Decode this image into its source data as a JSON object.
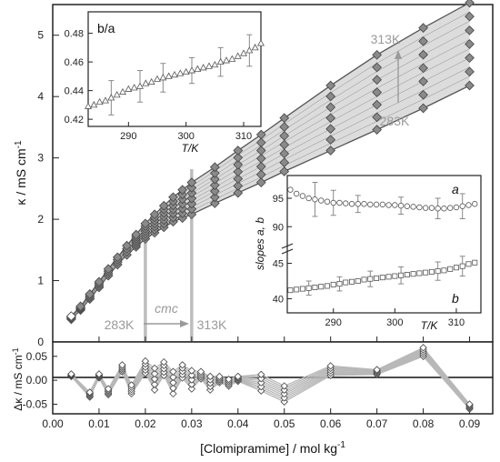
{
  "figure": {
    "xlabel": "[Clomipramime] / mol kg",
    "xlabel_sup": "-1",
    "main_ylabel": "κ / mS cm",
    "main_ylabel_sup": "-1",
    "resid_ylabel": "Δκ / mS cm",
    "resid_ylabel_sup": "-1",
    "annot_cmc": "cmc",
    "annot_283_bottom": "283K",
    "annot_313_bottom": "313K",
    "annot_313_top": "313K",
    "annot_283_top": "283K"
  },
  "colors": {
    "marker_fill": "#8a8a8a",
    "marker_open": "#ffffff",
    "line": "#555555",
    "band": "#bdbdbd",
    "annotation": "#9a9a9a"
  },
  "chart_data": [
    {
      "type": "line",
      "id": "main",
      "title": "",
      "xlabel": "[Clomipramime] / mol kg-1",
      "ylabel": "κ / mS cm-1",
      "xlim": [
        0.0,
        0.095
      ],
      "ylim": [
        0.0,
        5.5
      ],
      "xticks": [
        "0.00",
        "0.01",
        "0.02",
        "0.03",
        "0.04",
        "0.05",
        "0.06",
        "0.07",
        "0.08",
        "0.09"
      ],
      "yticks": [
        "0",
        "1",
        "2",
        "3",
        "4",
        "5"
      ],
      "series": [
        {
          "temperature": "283K",
          "x": [
            0.004,
            0.006,
            0.008,
            0.01,
            0.012,
            0.014,
            0.016,
            0.018,
            0.02,
            0.022,
            0.024,
            0.026,
            0.028,
            0.03,
            0.035,
            0.04,
            0.045,
            0.05,
            0.06,
            0.07,
            0.08,
            0.09
          ],
          "y": [
            0.37,
            0.52,
            0.7,
            0.89,
            1.08,
            1.26,
            1.42,
            1.55,
            1.68,
            1.78,
            1.87,
            1.96,
            2.02,
            2.08,
            2.26,
            2.43,
            2.6,
            2.78,
            3.12,
            3.46,
            3.81,
            4.18
          ]
        },
        {
          "temperature": "313K",
          "x": [
            0.004,
            0.006,
            0.008,
            0.01,
            0.012,
            0.014,
            0.016,
            0.018,
            0.02,
            0.022,
            0.024,
            0.026,
            0.028,
            0.03,
            0.035,
            0.04,
            0.045,
            0.05,
            0.06,
            0.07,
            0.08,
            0.09
          ],
          "y": [
            0.42,
            0.58,
            0.78,
            0.98,
            1.19,
            1.38,
            1.57,
            1.75,
            1.93,
            2.08,
            2.22,
            2.36,
            2.48,
            2.6,
            2.85,
            3.12,
            3.38,
            3.65,
            4.18,
            4.68,
            5.12,
            5.53
          ]
        }
      ]
    },
    {
      "type": "scatter",
      "id": "inset_ba",
      "title": "b/a",
      "xlabel": "T/K",
      "ylabel": "",
      "xlim": [
        283,
        313
      ],
      "ylim": [
        0.415,
        0.495
      ],
      "xticks": [
        "290",
        "300",
        "310"
      ],
      "yticks": [
        "0.42",
        "0.44",
        "0.46",
        "0.48"
      ],
      "series": [
        {
          "name": "b/a",
          "x": [
            283,
            284,
            285,
            286,
            287,
            288,
            289,
            290,
            291,
            292,
            293,
            294,
            295,
            296,
            297,
            298,
            299,
            300,
            301,
            302,
            303,
            304,
            305,
            306,
            307,
            308,
            309,
            310,
            311,
            312,
            313
          ],
          "y": [
            0.429,
            0.43,
            0.432,
            0.433,
            0.435,
            0.437,
            0.439,
            0.441,
            0.442,
            0.443,
            0.445,
            0.446,
            0.448,
            0.449,
            0.45,
            0.451,
            0.452,
            0.453,
            0.454,
            0.455,
            0.456,
            0.457,
            0.458,
            0.46,
            0.461,
            0.462,
            0.464,
            0.466,
            0.468,
            0.47,
            0.473
          ]
        }
      ],
      "error_bars": {
        "x": [
          287,
          292,
          296,
          301,
          306,
          311
        ],
        "half_width": [
          0.012,
          0.011,
          0.01,
          0.009,
          0.01,
          0.011
        ]
      }
    },
    {
      "type": "scatter",
      "id": "inset_slopes",
      "title": "",
      "xlabel": "T/K",
      "ylabel": "slopes a, b",
      "xlim": [
        282.5,
        314
      ],
      "ylim": [
        38,
        99
      ],
      "axis_break": [
        47,
        87
      ],
      "xticks": [
        "290",
        "300",
        "310"
      ],
      "yticks": [
        "40",
        "45",
        "90",
        "95"
      ],
      "series": [
        {
          "name": "a",
          "x": [
            283,
            284,
            285,
            286,
            287,
            288,
            289,
            290,
            291,
            292,
            293,
            294,
            295,
            296,
            297,
            298,
            299,
            300,
            301,
            302,
            303,
            304,
            305,
            306,
            307,
            308,
            309,
            310,
            311,
            312,
            313
          ],
          "y": [
            96.5,
            95.8,
            95.4,
            95.0,
            94.8,
            94.6,
            94.4,
            94.2,
            94.2,
            94.1,
            94.0,
            94.0,
            94.0,
            93.9,
            93.9,
            93.9,
            93.8,
            93.8,
            93.7,
            93.6,
            93.5,
            93.4,
            93.3,
            93.3,
            93.2,
            93.2,
            93.3,
            93.4,
            93.6,
            93.8,
            94.0
          ]
        },
        {
          "name": "b",
          "x": [
            283,
            284,
            285,
            286,
            287,
            288,
            289,
            290,
            291,
            292,
            293,
            294,
            295,
            296,
            297,
            298,
            299,
            300,
            301,
            302,
            303,
            304,
            305,
            306,
            307,
            308,
            309,
            310,
            311,
            312,
            313
          ],
          "y": [
            41.2,
            41.3,
            41.4,
            41.5,
            41.6,
            41.7,
            41.8,
            42.0,
            42.1,
            42.3,
            42.4,
            42.5,
            42.7,
            42.8,
            42.9,
            43.0,
            43.1,
            43.2,
            43.3,
            43.4,
            43.5,
            43.6,
            43.7,
            43.8,
            43.9,
            44.0,
            44.2,
            44.4,
            44.6,
            44.9,
            45.1
          ]
        }
      ],
      "error_bars": {
        "a_x": [
          287,
          290,
          294,
          301,
          307,
          311
        ],
        "a_half": [
          3.0,
          2.2,
          1.5,
          1.5,
          1.8,
          2.2
        ],
        "b_x": [
          286,
          291,
          296,
          301,
          307,
          311
        ],
        "b_half": [
          1.0,
          1.0,
          1.1,
          1.2,
          1.3,
          1.4
        ]
      }
    },
    {
      "type": "line",
      "id": "residuals",
      "title": "",
      "xlabel": "[Clomipramime] / mol kg-1",
      "ylabel": "Δκ / mS cm-1",
      "xlim": [
        0.0,
        0.095
      ],
      "ylim": [
        -0.07,
        0.08
      ],
      "yticks": [
        "-0.05",
        "0.00",
        "0.05"
      ],
      "x": [
        0.004,
        0.008,
        0.01,
        0.012,
        0.015,
        0.017,
        0.02,
        0.022,
        0.024,
        0.026,
        0.028,
        0.03,
        0.032,
        0.034,
        0.036,
        0.038,
        0.04,
        0.045,
        0.05,
        0.06,
        0.07,
        0.08,
        0.09
      ],
      "low": [
        0.008,
        -0.035,
        0.005,
        -0.03,
        0.018,
        -0.028,
        0.015,
        -0.02,
        0.01,
        -0.028,
        0.005,
        -0.018,
        0.003,
        -0.02,
        -0.005,
        -0.012,
        -0.002,
        -0.022,
        -0.045,
        0.01,
        0.012,
        0.05,
        -0.06
      ],
      "high": [
        0.013,
        -0.025,
        0.013,
        -0.018,
        0.032,
        -0.01,
        0.04,
        0.025,
        0.038,
        0.018,
        0.032,
        0.02,
        0.018,
        0.008,
        0.008,
        0.002,
        0.008,
        0.012,
        -0.012,
        0.03,
        0.022,
        0.068,
        -0.05
      ]
    }
  ]
}
